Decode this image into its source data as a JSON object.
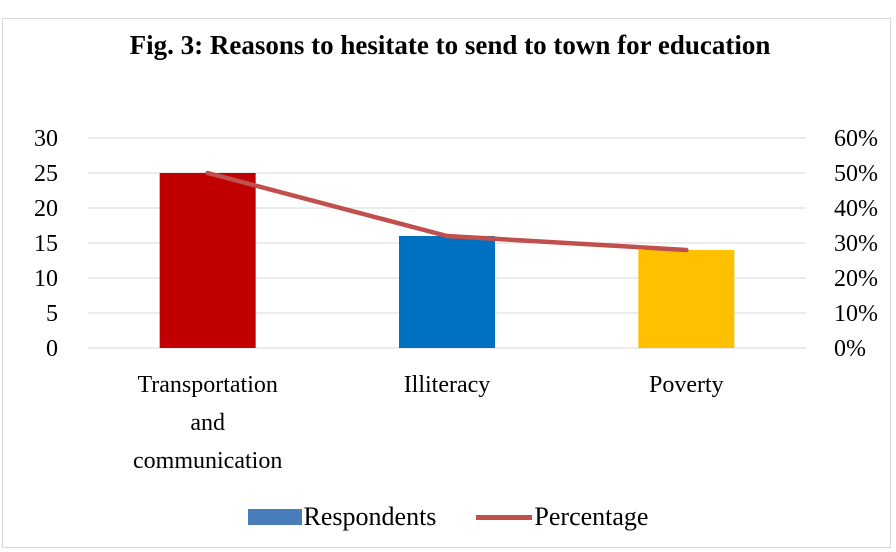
{
  "chart_data": {
    "type": "bar",
    "title": "Fig. 3: Reasons to hesitate to send to town for education",
    "categories": [
      "Transportation and communication",
      "Illiteracy",
      "Poverty"
    ],
    "category_label_lines": [
      [
        "Transportation",
        "and",
        "communication"
      ],
      [
        "Illiteracy"
      ],
      [
        "Poverty"
      ]
    ],
    "series": [
      {
        "name": "Respondents",
        "type": "bar",
        "axis": "left",
        "values": [
          25,
          16,
          14
        ]
      },
      {
        "name": "Percentage",
        "type": "line",
        "axis": "right",
        "values": [
          50,
          32,
          28
        ]
      }
    ],
    "bar_colors": [
      "#c00000",
      "#0070c0",
      "#ffc000"
    ],
    "legend_bar_color": "#4a7ebb",
    "line_color": "#c0504d",
    "ylim": [
      0,
      30
    ],
    "yticks": [
      0,
      5,
      10,
      15,
      20,
      25,
      30
    ],
    "y2lim": [
      0,
      60
    ],
    "y2ticks": [
      "0%",
      "10%",
      "20%",
      "30%",
      "40%",
      "50%",
      "60%"
    ],
    "grid": true,
    "legend_position": "bottom"
  }
}
